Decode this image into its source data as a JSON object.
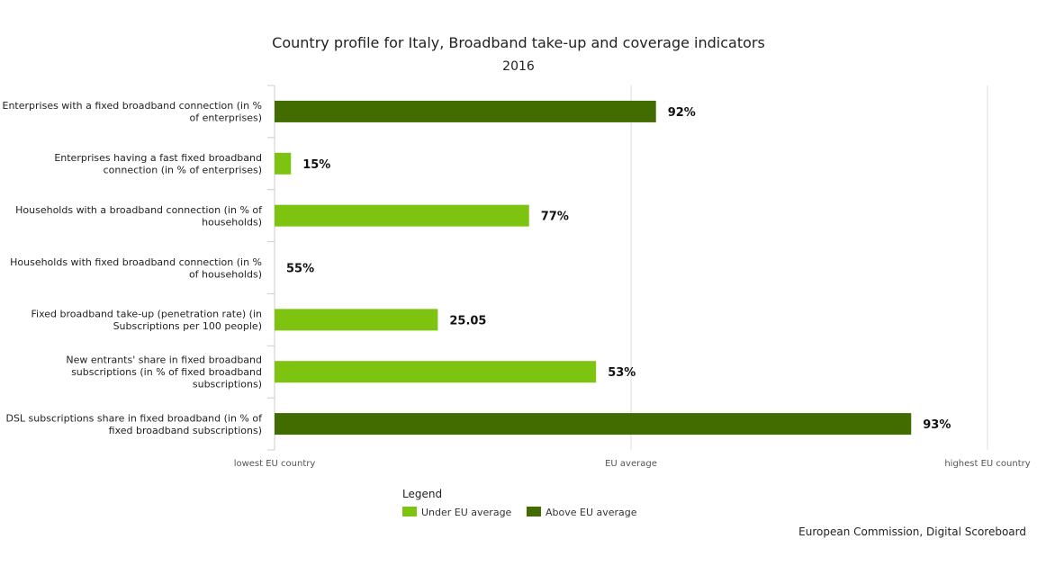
{
  "chart_data": {
    "type": "bar",
    "orientation": "horizontal",
    "title": "Country profile for Italy, Broadband take-up and coverage indicators",
    "subtitle": "2016",
    "x_ticks": [
      "lowest EU country",
      "EU average",
      "highest EU country"
    ],
    "scale_note": "bars are positioned relative to the EU range: 0 = lowest EU country, 0.5 = EU average, 1 = highest EU country",
    "categories": [
      {
        "label_lines": [
          "Enterprises with a fixed broadband connection (in %",
          "of enterprises)"
        ],
        "value_label": "92%",
        "relative_position": 0.535,
        "group": "Above EU average"
      },
      {
        "label_lines": [
          "Enterprises having a fast fixed broadband",
          "connection (in % of enterprises)"
        ],
        "value_label": "15%",
        "relative_position": 0.023,
        "group": "Under EU average"
      },
      {
        "label_lines": [
          "Households with a broadband connection (in % of",
          "households)"
        ],
        "value_label": "77%",
        "relative_position": 0.357,
        "group": "Under EU average"
      },
      {
        "label_lines": [
          "Households with fixed broadband connection (in %",
          "of households)"
        ],
        "value_label": "55%",
        "relative_position": 0.0,
        "group": "Under EU average"
      },
      {
        "label_lines": [
          "Fixed broadband take-up (penetration rate) (in",
          "Subscriptions per 100 people)"
        ],
        "value_label": "25.05",
        "relative_position": 0.229,
        "group": "Under EU average"
      },
      {
        "label_lines": [
          "New entrants' share in fixed broadband",
          "subscriptions (in % of fixed broadband",
          "subscriptions)"
        ],
        "value_label": "53%",
        "relative_position": 0.451,
        "group": "Under EU average"
      },
      {
        "label_lines": [
          "DSL subscriptions share in fixed broadband (in % of",
          "fixed broadband subscriptions)"
        ],
        "value_label": "93%",
        "relative_position": 0.893,
        "group": "Above EU average"
      }
    ],
    "legend": {
      "title": "Legend",
      "placement": "bottom-center",
      "items": [
        {
          "name": "Under EU average",
          "color": "#7dc30f"
        },
        {
          "name": "Above EU average",
          "color": "#436c00"
        }
      ]
    },
    "gridlines": true
  },
  "credits": "European Commission, Digital Scoreboard"
}
